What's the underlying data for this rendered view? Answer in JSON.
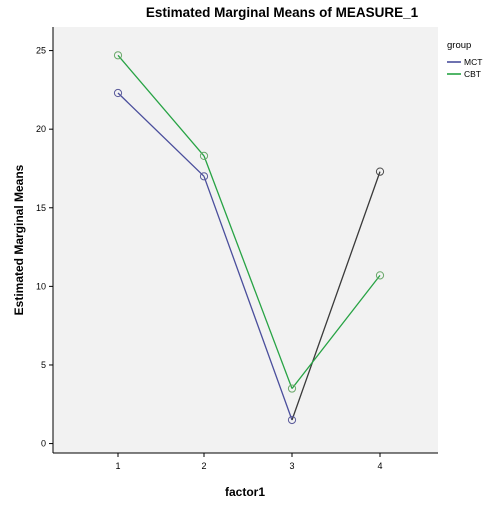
{
  "chart_data": {
    "type": "line",
    "title": "Estimated Marginal Means of MEASURE_1",
    "xlabel": "factor1",
    "ylabel": "Estimated Marginal Means",
    "x": [
      1,
      2,
      3,
      4
    ],
    "x_tick_labels": [
      "1",
      "2",
      "3",
      "4"
    ],
    "ylim": [
      -0.6,
      26.5
    ],
    "y_ticks": [
      0,
      5,
      10,
      15,
      20,
      25
    ],
    "y_tick_labels": [
      "0",
      "5",
      "10",
      "15",
      "20",
      "25"
    ],
    "grid": false,
    "legend_title": "group",
    "legend_position": "top-right",
    "series": [
      {
        "name": "MCT",
        "values": [
          22.3,
          17.0,
          1.5,
          17.3
        ],
        "segment_colors": [
          "#4a4e9c",
          "#4a4e9c",
          "#3a3a3a"
        ],
        "marker_colors": [
          "#5a5a9a",
          "#5a5a9a",
          "#5a5a9a",
          "#4a4a4a"
        ]
      },
      {
        "name": "CBT",
        "values": [
          24.7,
          18.3,
          3.5,
          10.7
        ],
        "segment_colors": [
          "#27a344",
          "#27a344",
          "#27a344"
        ],
        "marker_colors": [
          "#6aa86a",
          "#6aa86a",
          "#6aa86a",
          "#6aa86a"
        ]
      }
    ],
    "legend_colors": [
      "#4a4e9c",
      "#27a344"
    ]
  },
  "colors": {
    "plot_background": "#f2f2f2",
    "axis": "#000000",
    "text": "#000000"
  }
}
